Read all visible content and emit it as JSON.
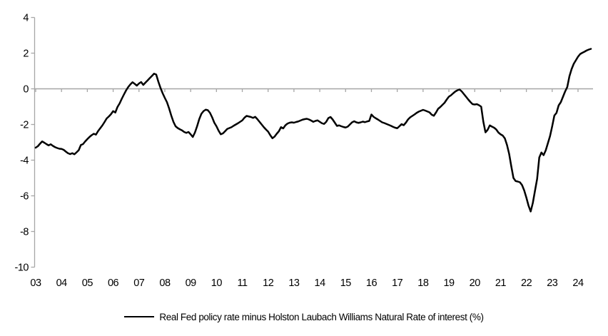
{
  "chart_data": {
    "type": "line",
    "title": "",
    "xlabel": "",
    "ylabel": "",
    "ylim": [
      -10,
      4
    ],
    "grid": "zero-line-only",
    "legend_position": "bottom-center",
    "axis_color": "#a6a6a6",
    "line_color": "#000000",
    "yticks": [
      4,
      2,
      0,
      -2,
      -4,
      -6,
      -8,
      -10
    ],
    "ytick_labels": [
      "4",
      "2",
      "0",
      "-2",
      "-4",
      "-6",
      "-8",
      "-10"
    ],
    "xtick_labels": [
      "03",
      "04",
      "05",
      "06",
      "07",
      "08",
      "09",
      "10",
      "11",
      "12",
      "13",
      "14",
      "15",
      "16",
      "17",
      "18",
      "19",
      "20",
      "21",
      "22",
      "23",
      "24"
    ],
    "series": [
      {
        "name": "Real Fed policy rate minus Holston Laubach Williams Natural Rate of interest (%)",
        "color": "#000000",
        "start": "2003-01",
        "end": "2024-07",
        "frequency": "monthly",
        "values": [
          -3.3,
          -3.22,
          -3.08,
          -2.95,
          -3.02,
          -3.1,
          -3.17,
          -3.11,
          -3.2,
          -3.27,
          -3.32,
          -3.36,
          -3.37,
          -3.42,
          -3.52,
          -3.61,
          -3.66,
          -3.61,
          -3.67,
          -3.56,
          -3.44,
          -3.15,
          -3.1,
          -2.95,
          -2.82,
          -2.7,
          -2.6,
          -2.52,
          -2.57,
          -2.37,
          -2.21,
          -2.05,
          -1.86,
          -1.66,
          -1.55,
          -1.42,
          -1.25,
          -1.33,
          -1.02,
          -0.82,
          -0.56,
          -0.32,
          -0.09,
          0.1,
          0.25,
          0.37,
          0.28,
          0.18,
          0.3,
          0.38,
          0.22,
          0.35,
          0.47,
          0.6,
          0.72,
          0.85,
          0.8,
          0.4,
          0.05,
          -0.25,
          -0.51,
          -0.75,
          -1.1,
          -1.5,
          -1.85,
          -2.1,
          -2.2,
          -2.27,
          -2.33,
          -2.42,
          -2.47,
          -2.42,
          -2.55,
          -2.7,
          -2.45,
          -2.1,
          -1.7,
          -1.4,
          -1.25,
          -1.17,
          -1.2,
          -1.35,
          -1.6,
          -1.9,
          -2.1,
          -2.35,
          -2.55,
          -2.5,
          -2.38,
          -2.25,
          -2.2,
          -2.15,
          -2.07,
          -2.0,
          -1.93,
          -1.85,
          -1.77,
          -1.62,
          -1.52,
          -1.55,
          -1.58,
          -1.63,
          -1.57,
          -1.7,
          -1.85,
          -2.0,
          -2.15,
          -2.28,
          -2.4,
          -2.6,
          -2.77,
          -2.68,
          -2.52,
          -2.38,
          -2.15,
          -2.22,
          -2.05,
          -1.95,
          -1.9,
          -1.88,
          -1.9,
          -1.86,
          -1.83,
          -1.78,
          -1.73,
          -1.7,
          -1.68,
          -1.72,
          -1.78,
          -1.85,
          -1.8,
          -1.77,
          -1.85,
          -1.93,
          -1.97,
          -1.85,
          -1.64,
          -1.58,
          -1.72,
          -1.9,
          -2.08,
          -2.05,
          -2.1,
          -2.14,
          -2.17,
          -2.12,
          -2.0,
          -1.88,
          -1.82,
          -1.88,
          -1.91,
          -1.88,
          -1.84,
          -1.87,
          -1.83,
          -1.8,
          -1.44,
          -1.57,
          -1.65,
          -1.72,
          -1.8,
          -1.88,
          -1.92,
          -1.97,
          -2.02,
          -2.07,
          -2.13,
          -2.18,
          -2.21,
          -2.1,
          -1.98,
          -2.04,
          -1.9,
          -1.72,
          -1.6,
          -1.52,
          -1.44,
          -1.35,
          -1.28,
          -1.23,
          -1.18,
          -1.22,
          -1.27,
          -1.32,
          -1.45,
          -1.51,
          -1.33,
          -1.12,
          -1.02,
          -0.9,
          -0.78,
          -0.6,
          -0.44,
          -0.36,
          -0.25,
          -0.15,
          -0.08,
          -0.04,
          -0.15,
          -0.3,
          -0.45,
          -0.6,
          -0.74,
          -0.86,
          -0.88,
          -0.86,
          -0.92,
          -1.0,
          -1.84,
          -2.44,
          -2.3,
          -2.05,
          -2.12,
          -2.18,
          -2.28,
          -2.45,
          -2.55,
          -2.62,
          -2.78,
          -3.15,
          -3.65,
          -4.35,
          -5.0,
          -5.17,
          -5.2,
          -5.24,
          -5.4,
          -5.7,
          -6.1,
          -6.55,
          -6.88,
          -6.4,
          -5.72,
          -5.05,
          -3.85,
          -3.57,
          -3.72,
          -3.45,
          -3.05,
          -2.65,
          -2.1,
          -1.5,
          -1.35,
          -0.93,
          -0.75,
          -0.45,
          -0.15,
          0.1,
          0.7,
          1.1,
          1.4,
          1.6,
          1.8,
          1.95,
          2.02,
          2.08,
          2.15,
          2.2,
          2.24
        ]
      }
    ]
  },
  "legend": {
    "label": "Real Fed policy rate minus Holston Laubach Williams Natural Rate of interest (%)"
  }
}
